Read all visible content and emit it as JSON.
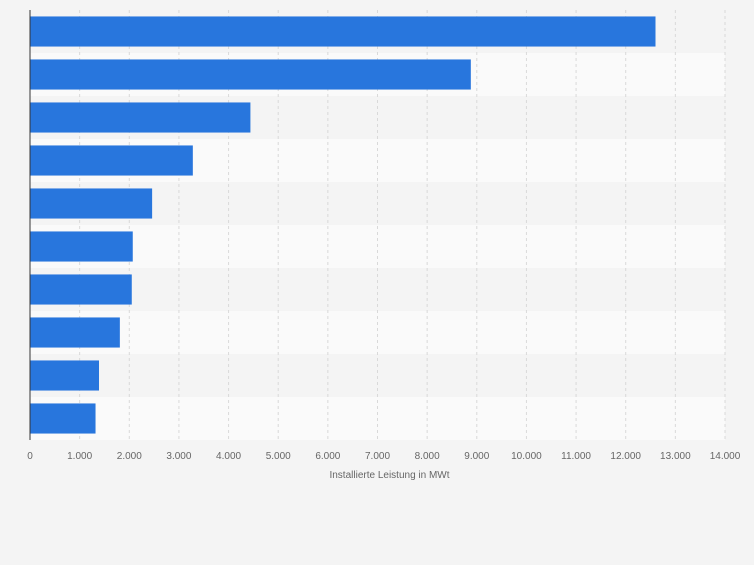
{
  "chart_data": {
    "type": "bar",
    "orientation": "horizontal",
    "categories": [
      "",
      "",
      "",
      "",
      "",
      "",
      "",
      "",
      "",
      ""
    ],
    "values": [
      12600,
      8880,
      4440,
      3280,
      2460,
      2070,
      2050,
      1810,
      1390,
      1320
    ],
    "title": "",
    "xlabel": "Installierte Leistung in MWt",
    "ylabel": "",
    "xlim": [
      0,
      14000
    ],
    "xticks": [
      0,
      1000,
      2000,
      3000,
      4000,
      5000,
      6000,
      7000,
      8000,
      9000,
      10000,
      11000,
      12000,
      13000,
      14000
    ],
    "xtick_labels": [
      "0",
      "1.000",
      "2.000",
      "3.000",
      "4.000",
      "5.000",
      "6.000",
      "7.000",
      "8.000",
      "9.000",
      "10.000",
      "11.000",
      "12.000",
      "13.000",
      "14.000"
    ],
    "grid": true,
    "legend": "none",
    "colors": {
      "bar": "#2876dd",
      "band_dark": "#f4f4f4",
      "band_light": "#fafafa",
      "grid": "#d9d9d9",
      "axis": "#333333",
      "tick_text": "#666666"
    }
  }
}
